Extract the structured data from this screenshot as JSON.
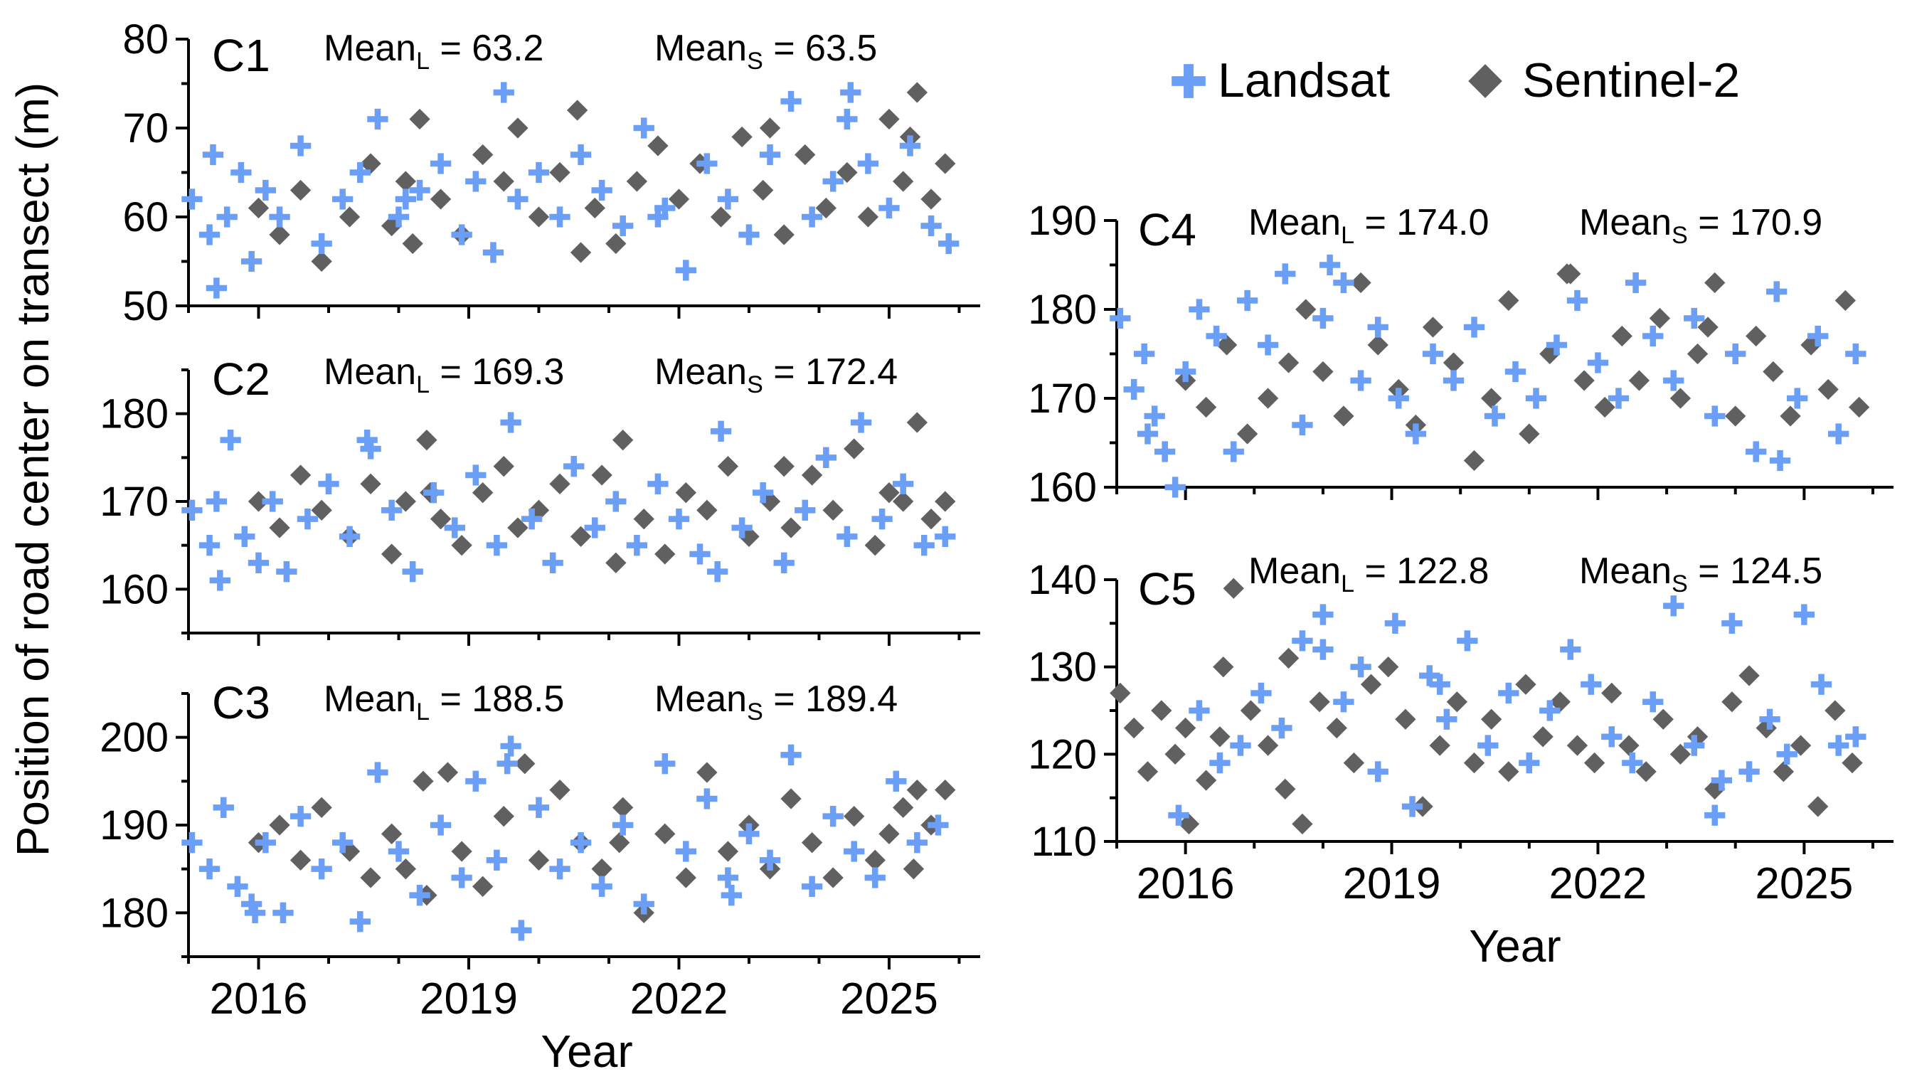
{
  "colors": {
    "landsat": "#6B9EF5",
    "sentinel": "#606060"
  },
  "legend": {
    "landsat_label": "Landsat",
    "sentinel_label": "Sentinel-2"
  },
  "y_axis_title": "Position of road center on transect (m)",
  "x_axis_title_left": "Year",
  "x_axis_title_right": "Year",
  "chart_data": [
    {
      "type": "scatter",
      "id": "C1",
      "label": "C1",
      "ylim": [
        50,
        80
      ],
      "yticks": [
        50,
        60,
        70,
        80
      ],
      "xlim": [
        2015.0,
        2026.3
      ],
      "xticks": [
        2016,
        2019,
        2022,
        2025
      ],
      "mean_landsat": "63.2",
      "mean_sentinel": "63.5",
      "mean_L_text": "Mean",
      "mean_L_sub": "L",
      "mean_L_val": " = 63.2",
      "mean_S_text": "Mean",
      "mean_S_sub": "S",
      "mean_S_val": " = 63.5",
      "series": [
        {
          "name": "Landsat",
          "x": [
            2015.05,
            2015.3,
            2015.4,
            2015.55,
            2015.75,
            2015.9,
            2016.1,
            2016.3,
            2016.6,
            2016.9,
            2017.2,
            2017.45,
            2017.7,
            2018.0,
            2018.3,
            2018.6,
            2018.9,
            2019.1,
            2019.35,
            2019.5,
            2019.7,
            2020.0,
            2020.3,
            2020.6,
            2020.9,
            2021.2,
            2021.5,
            2021.8,
            2022.1,
            2022.4,
            2022.7,
            2023.0,
            2023.3,
            2023.6,
            2023.9,
            2024.2,
            2024.45,
            2024.7,
            2025.0,
            2025.3,
            2025.6,
            2025.85,
            2015.35,
            2018.1,
            2021.7,
            2024.4
          ],
          "y": [
            62,
            58,
            52,
            60,
            65,
            55,
            63,
            60,
            68,
            57,
            62,
            65,
            71,
            60,
            63,
            66,
            58,
            64,
            56,
            74,
            62,
            65,
            60,
            67,
            63,
            59,
            70,
            61,
            54,
            66,
            62,
            58,
            67,
            73,
            60,
            64,
            74,
            66,
            61,
            68,
            59,
            57,
            67,
            62,
            60,
            71
          ]
        },
        {
          "name": "Sentinel-2",
          "x": [
            2016.0,
            2016.3,
            2016.6,
            2016.9,
            2017.3,
            2017.6,
            2017.9,
            2018.1,
            2018.3,
            2018.6,
            2018.9,
            2019.2,
            2019.5,
            2019.7,
            2020.0,
            2020.3,
            2020.55,
            2020.8,
            2021.1,
            2021.4,
            2021.7,
            2022.0,
            2022.3,
            2022.6,
            2022.9,
            2023.2,
            2023.5,
            2023.8,
            2024.1,
            2024.4,
            2024.7,
            2025.0,
            2025.2,
            2025.4,
            2025.6,
            2025.8,
            2018.2,
            2020.6,
            2023.3,
            2025.3
          ],
          "y": [
            61,
            58,
            63,
            55,
            60,
            66,
            59,
            64,
            71,
            62,
            58,
            67,
            64,
            70,
            60,
            65,
            72,
            61,
            57,
            64,
            68,
            62,
            66,
            60,
            69,
            63,
            58,
            67,
            61,
            65,
            60,
            71,
            64,
            74,
            62,
            66,
            57,
            56,
            70,
            69
          ]
        }
      ]
    },
    {
      "type": "scatter",
      "id": "C2",
      "label": "C2",
      "ylim": [
        155,
        185
      ],
      "yticks": [
        160,
        170,
        180
      ],
      "xlim": [
        2015.0,
        2026.3
      ],
      "xticks": [
        2016,
        2019,
        2022,
        2025
      ],
      "mean_landsat": "169.3",
      "mean_sentinel": "172.4",
      "mean_L_text": "Mean",
      "mean_L_sub": "L",
      "mean_L_val": " = 169.3",
      "mean_S_text": "Mean",
      "mean_S_sub": "S",
      "mean_S_val": " = 172.4",
      "series": [
        {
          "name": "Landsat",
          "x": [
            2015.05,
            2015.3,
            2015.45,
            2015.6,
            2015.8,
            2016.0,
            2016.2,
            2016.4,
            2016.7,
            2017.0,
            2017.3,
            2017.6,
            2017.9,
            2018.2,
            2018.5,
            2018.8,
            2019.1,
            2019.4,
            2019.6,
            2019.9,
            2020.2,
            2020.5,
            2020.8,
            2021.1,
            2021.4,
            2021.7,
            2022.0,
            2022.3,
            2022.6,
            2022.9,
            2023.2,
            2023.5,
            2023.8,
            2024.1,
            2024.4,
            2024.6,
            2024.9,
            2025.2,
            2025.5,
            2025.8,
            2015.4,
            2017.55,
            2022.55
          ],
          "y": [
            169,
            165,
            161,
            177,
            166,
            163,
            170,
            162,
            168,
            172,
            166,
            176,
            169,
            162,
            171,
            167,
            173,
            165,
            179,
            168,
            163,
            174,
            167,
            170,
            165,
            172,
            168,
            164,
            178,
            167,
            171,
            163,
            169,
            175,
            166,
            179,
            168,
            172,
            165,
            166,
            170,
            177,
            162
          ]
        },
        {
          "name": "Sentinel-2",
          "x": [
            2016.0,
            2016.3,
            2016.6,
            2016.9,
            2017.3,
            2017.6,
            2017.9,
            2018.1,
            2018.4,
            2018.6,
            2018.9,
            2019.2,
            2019.5,
            2019.7,
            2020.0,
            2020.3,
            2020.6,
            2020.9,
            2021.2,
            2021.5,
            2021.8,
            2022.1,
            2022.4,
            2022.7,
            2023.0,
            2023.3,
            2023.6,
            2023.9,
            2024.2,
            2024.5,
            2024.8,
            2025.0,
            2025.2,
            2025.4,
            2025.6,
            2025.8,
            2018.45,
            2021.1,
            2023.5
          ],
          "y": [
            170,
            167,
            173,
            169,
            166,
            172,
            164,
            170,
            177,
            168,
            165,
            171,
            174,
            167,
            169,
            172,
            166,
            173,
            177,
            168,
            164,
            171,
            169,
            174,
            166,
            170,
            167,
            173,
            169,
            176,
            165,
            171,
            170,
            179,
            168,
            170,
            171,
            163,
            174
          ]
        }
      ]
    },
    {
      "type": "scatter",
      "id": "C3",
      "label": "C3",
      "ylim": [
        175,
        205
      ],
      "yticks": [
        180,
        190,
        200
      ],
      "xlim": [
        2015.0,
        2026.3
      ],
      "xticks": [
        2016,
        2019,
        2022,
        2025
      ],
      "mean_landsat": "188.5",
      "mean_sentinel": "189.4",
      "mean_L_text": "Mean",
      "mean_L_sub": "L",
      "mean_L_val": " = 188.5",
      "mean_S_text": "Mean",
      "mean_S_sub": "S",
      "mean_S_val": " = 189.4",
      "series": [
        {
          "name": "Landsat",
          "x": [
            2015.05,
            2015.3,
            2015.5,
            2015.7,
            2015.9,
            2016.1,
            2016.35,
            2016.6,
            2016.9,
            2017.2,
            2017.45,
            2017.7,
            2018.0,
            2018.3,
            2018.6,
            2018.9,
            2019.1,
            2019.4,
            2019.6,
            2019.75,
            2020.0,
            2020.3,
            2020.6,
            2020.9,
            2021.2,
            2021.5,
            2021.8,
            2022.1,
            2022.4,
            2022.7,
            2023.0,
            2023.3,
            2023.6,
            2023.9,
            2024.2,
            2024.5,
            2024.8,
            2025.1,
            2025.4,
            2025.7,
            2015.95,
            2019.55,
            2022.75
          ],
          "y": [
            188,
            185,
            192,
            183,
            181,
            188,
            180,
            191,
            185,
            188,
            179,
            196,
            187,
            182,
            190,
            184,
            195,
            186,
            199,
            178,
            192,
            185,
            188,
            183,
            190,
            181,
            197,
            187,
            193,
            184,
            189,
            186,
            198,
            183,
            191,
            187,
            184,
            195,
            188,
            190,
            180,
            197,
            182
          ]
        },
        {
          "name": "Sentinel-2",
          "x": [
            2016.0,
            2016.3,
            2016.6,
            2016.9,
            2017.3,
            2017.6,
            2017.9,
            2018.1,
            2018.4,
            2018.7,
            2018.9,
            2019.2,
            2019.5,
            2019.8,
            2020.0,
            2020.3,
            2020.6,
            2020.9,
            2021.2,
            2021.5,
            2021.8,
            2022.1,
            2022.4,
            2022.7,
            2023.0,
            2023.3,
            2023.6,
            2023.9,
            2024.2,
            2024.5,
            2024.8,
            2025.0,
            2025.2,
            2025.4,
            2025.6,
            2025.8,
            2018.35,
            2021.15,
            2025.35
          ],
          "y": [
            188,
            190,
            186,
            192,
            187,
            184,
            189,
            185,
            182,
            196,
            187,
            183,
            191,
            197,
            186,
            194,
            188,
            185,
            192,
            180,
            189,
            184,
            196,
            187,
            190,
            185,
            193,
            188,
            184,
            191,
            186,
            189,
            192,
            194,
            190,
            194,
            195,
            188,
            185
          ]
        }
      ]
    },
    {
      "type": "scatter",
      "id": "C4",
      "label": "C4",
      "ylim": [
        160,
        190
      ],
      "yticks": [
        160,
        170,
        180,
        190
      ],
      "xlim": [
        2015.0,
        2026.3
      ],
      "xticks": [
        2016,
        2019,
        2022,
        2025
      ],
      "mean_landsat": "174.0",
      "mean_sentinel": "170.9",
      "mean_L_text": "Mean",
      "mean_L_sub": "L",
      "mean_L_val": " = 174.0",
      "mean_S_text": "Mean",
      "mean_S_sub": "S",
      "mean_S_val": " = 170.9",
      "series": [
        {
          "name": "Landsat",
          "x": [
            2015.05,
            2015.25,
            2015.4,
            2015.55,
            2015.7,
            2015.85,
            2016.0,
            2016.2,
            2016.45,
            2016.7,
            2016.9,
            2017.2,
            2017.45,
            2017.7,
            2018.0,
            2018.3,
            2018.55,
            2018.8,
            2019.1,
            2019.35,
            2019.6,
            2019.9,
            2020.2,
            2020.5,
            2020.8,
            2021.1,
            2021.4,
            2021.7,
            2022.0,
            2022.3,
            2022.55,
            2022.8,
            2023.1,
            2023.4,
            2023.7,
            2024.0,
            2024.3,
            2024.6,
            2024.9,
            2025.2,
            2025.5,
            2025.75,
            2015.45,
            2018.1,
            2024.65
          ],
          "y": [
            179,
            171,
            175,
            168,
            164,
            160,
            173,
            180,
            177,
            164,
            181,
            176,
            184,
            167,
            179,
            183,
            172,
            178,
            170,
            166,
            175,
            172,
            178,
            168,
            173,
            170,
            176,
            181,
            174,
            170,
            183,
            177,
            172,
            179,
            168,
            175,
            164,
            182,
            170,
            177,
            166,
            175,
            166,
            185,
            163
          ]
        },
        {
          "name": "Sentinel-2",
          "x": [
            2016.0,
            2016.3,
            2016.6,
            2016.9,
            2017.2,
            2017.5,
            2017.75,
            2018.0,
            2018.3,
            2018.55,
            2018.8,
            2019.1,
            2019.35,
            2019.6,
            2019.9,
            2020.2,
            2020.45,
            2020.7,
            2021.0,
            2021.3,
            2021.55,
            2021.8,
            2022.1,
            2022.35,
            2022.6,
            2022.9,
            2023.2,
            2023.45,
            2023.7,
            2024.0,
            2024.3,
            2024.55,
            2024.8,
            2025.1,
            2025.35,
            2025.6,
            2025.8,
            2021.6,
            2023.6
          ],
          "y": [
            172,
            169,
            176,
            166,
            170,
            174,
            180,
            173,
            168,
            183,
            176,
            171,
            167,
            178,
            174,
            163,
            170,
            181,
            166,
            175,
            184,
            172,
            169,
            177,
            172,
            179,
            170,
            175,
            183,
            168,
            177,
            173,
            168,
            176,
            171,
            181,
            169,
            184,
            178
          ]
        }
      ]
    },
    {
      "type": "scatter",
      "id": "C5",
      "label": "C5",
      "ylim": [
        110,
        140
      ],
      "yticks": [
        110,
        120,
        130,
        140
      ],
      "xlim": [
        2015.0,
        2026.3
      ],
      "xticks": [
        2016,
        2019,
        2022,
        2025
      ],
      "mean_landsat": "122.8",
      "mean_sentinel": "124.5",
      "mean_L_text": "Mean",
      "mean_L_sub": "L",
      "mean_L_val": " = 122.8",
      "mean_S_text": "Mean",
      "mean_S_sub": "S",
      "mean_S_val": " = 124.5",
      "series": [
        {
          "name": "Landsat",
          "x": [
            2015.9,
            2016.2,
            2016.5,
            2016.8,
            2017.1,
            2017.4,
            2017.7,
            2018.0,
            2018.3,
            2018.55,
            2018.8,
            2019.05,
            2019.3,
            2019.55,
            2019.8,
            2020.1,
            2020.4,
            2020.7,
            2021.0,
            2021.3,
            2021.6,
            2021.9,
            2022.2,
            2022.5,
            2022.8,
            2023.1,
            2023.4,
            2023.7,
            2023.95,
            2024.2,
            2024.5,
            2024.75,
            2025.0,
            2025.25,
            2025.5,
            2025.75,
            2018.0,
            2019.7,
            2023.8
          ],
          "y": [
            113,
            125,
            119,
            121,
            127,
            123,
            133,
            136,
            126,
            130,
            118,
            135,
            114,
            129,
            124,
            133,
            121,
            127,
            119,
            125,
            132,
            128,
            122,
            119,
            126,
            137,
            121,
            113,
            135,
            118,
            124,
            120,
            136,
            128,
            121,
            122,
            132,
            128,
            117
          ]
        },
        {
          "name": "Sentinel-2",
          "x": [
            2015.05,
            2015.25,
            2015.45,
            2015.65,
            2015.85,
            2016.05,
            2016.3,
            2016.5,
            2016.7,
            2016.95,
            2017.2,
            2017.45,
            2017.7,
            2017.95,
            2018.2,
            2018.45,
            2018.7,
            2018.95,
            2019.2,
            2019.45,
            2019.7,
            2019.95,
            2020.2,
            2020.45,
            2020.7,
            2020.95,
            2021.2,
            2021.45,
            2021.7,
            2021.95,
            2022.2,
            2022.45,
            2022.7,
            2022.95,
            2023.2,
            2023.45,
            2023.7,
            2023.95,
            2024.2,
            2024.45,
            2024.7,
            2024.95,
            2025.2,
            2025.45,
            2025.7,
            2016.55,
            2017.5,
            2016.0
          ],
          "y": [
            127,
            123,
            118,
            125,
            120,
            112,
            117,
            122,
            139,
            125,
            121,
            116,
            112,
            126,
            123,
            119,
            128,
            130,
            124,
            114,
            121,
            126,
            119,
            124,
            118,
            128,
            122,
            126,
            121,
            119,
            127,
            121,
            118,
            124,
            120,
            122,
            116,
            126,
            129,
            123,
            118,
            121,
            114,
            125,
            119,
            130,
            131,
            123
          ]
        }
      ]
    }
  ]
}
